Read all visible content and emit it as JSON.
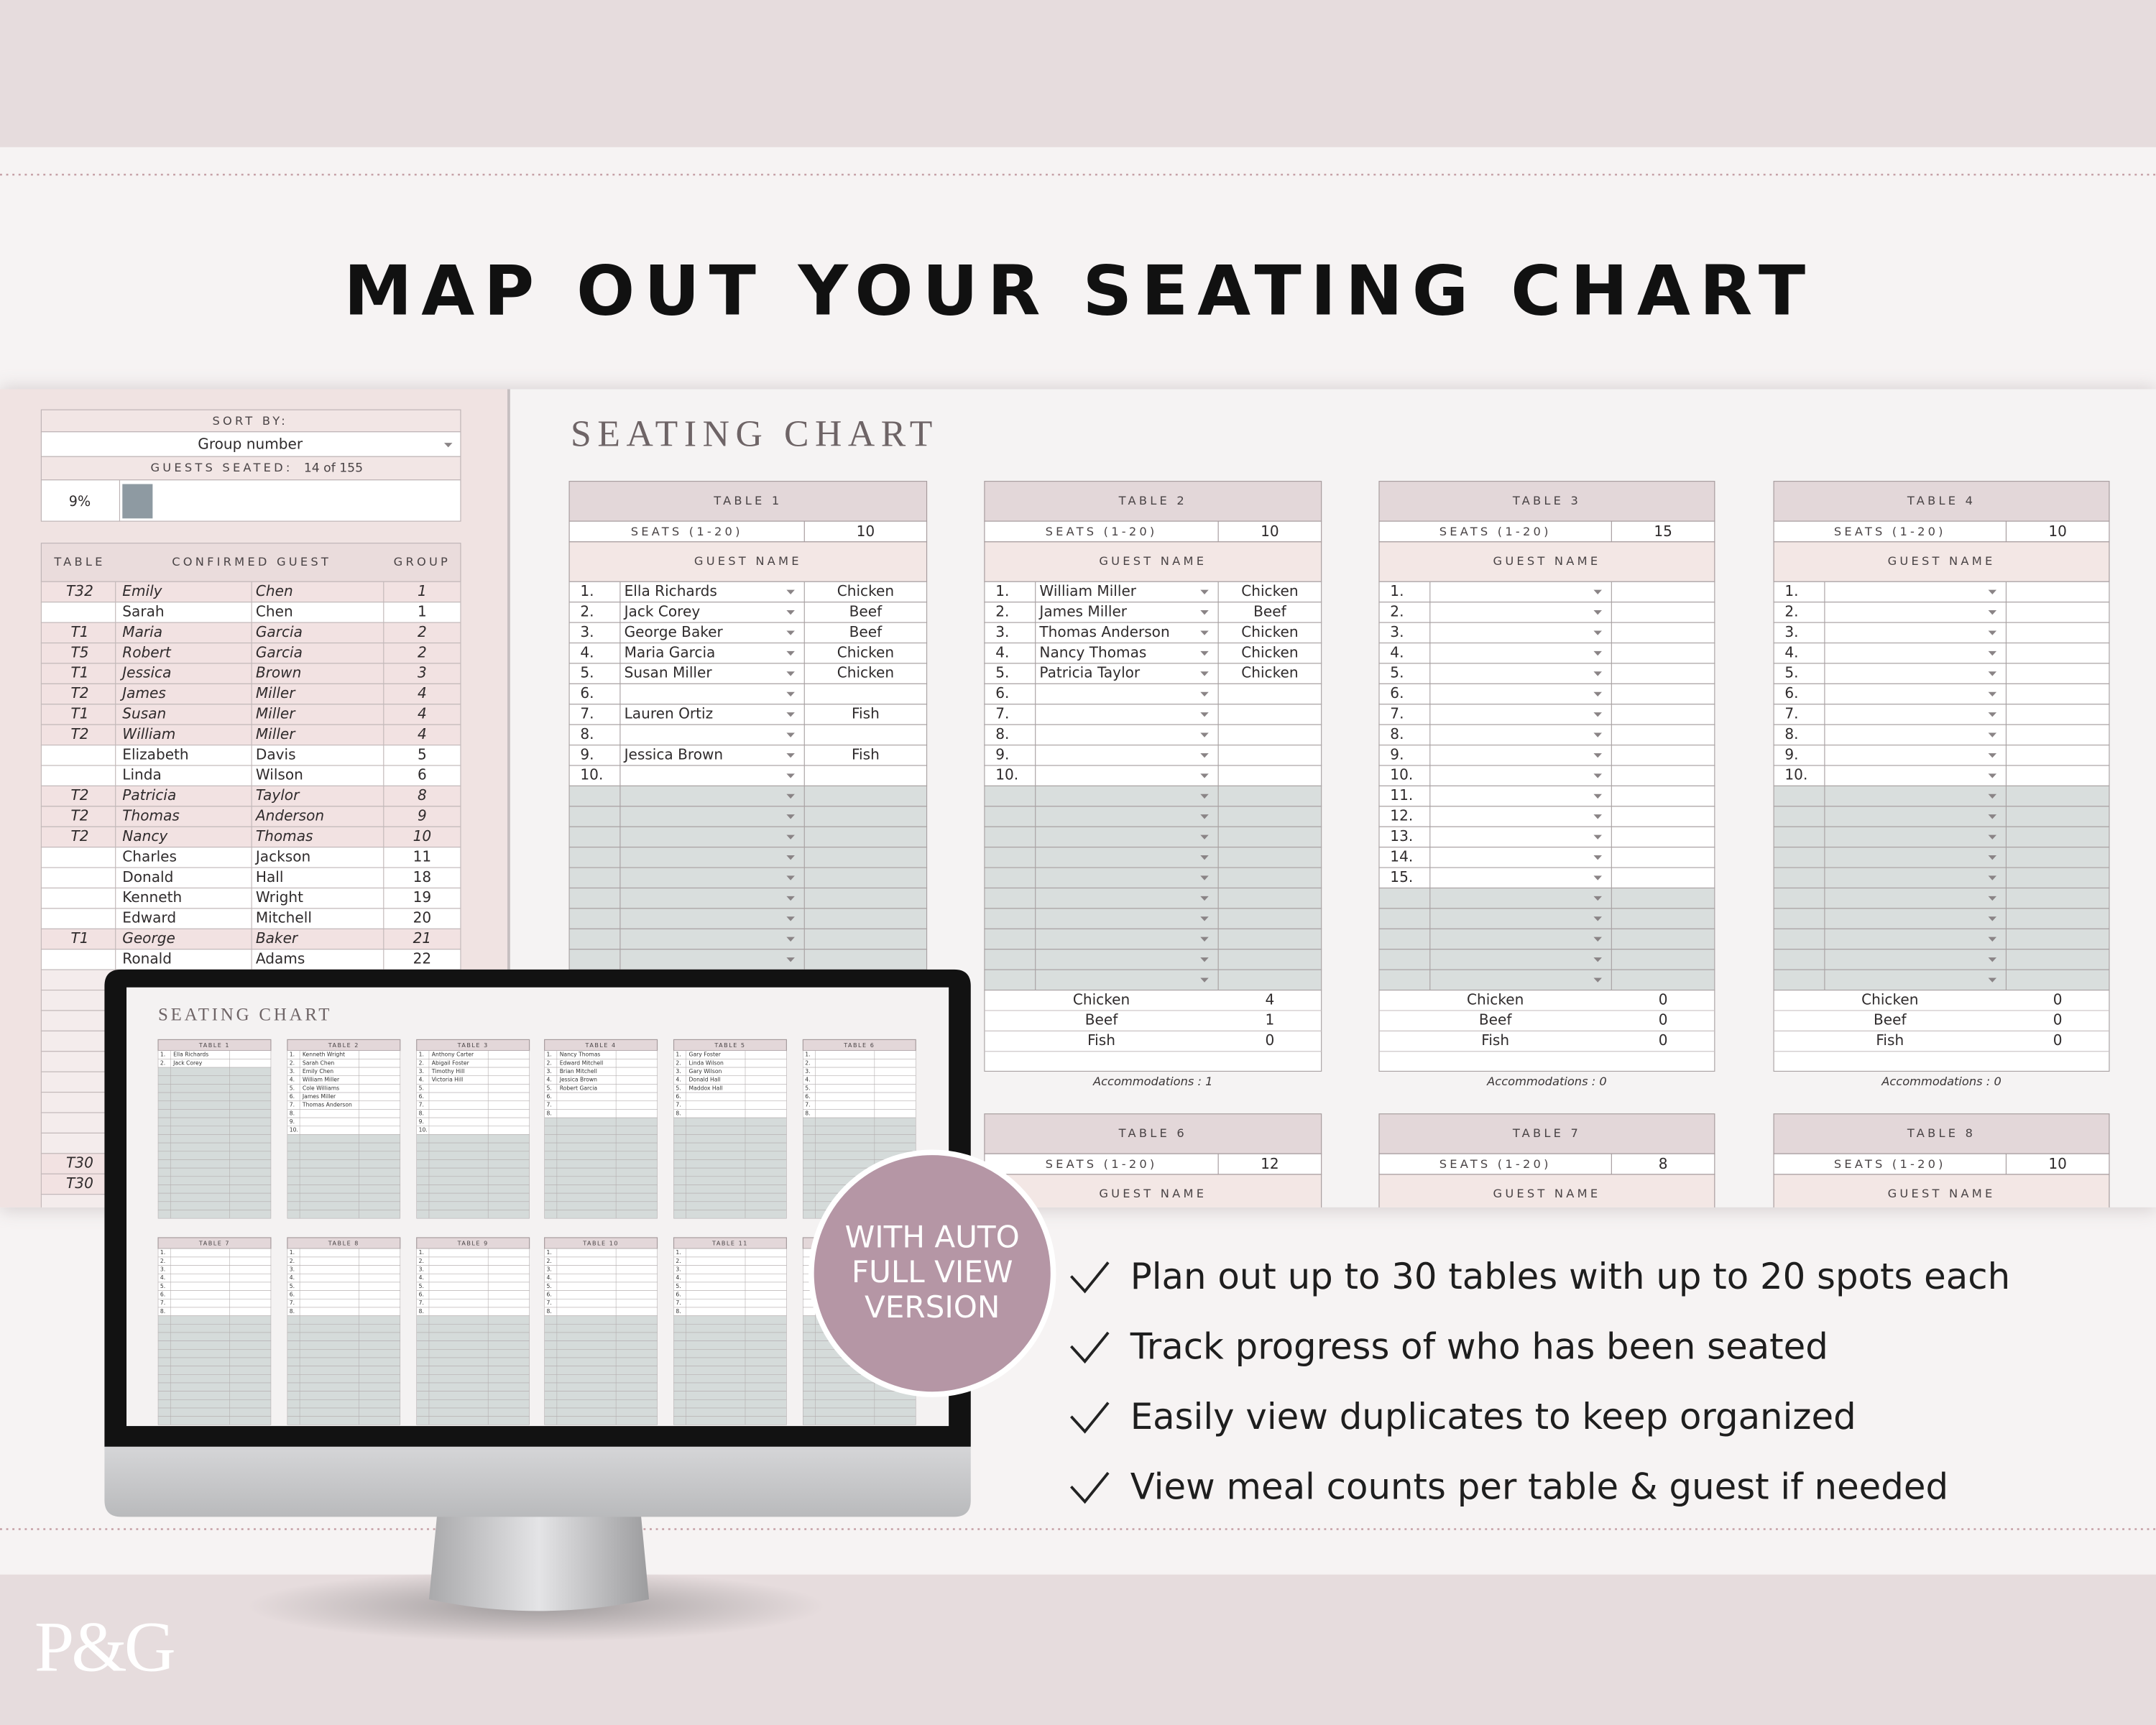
{
  "header": {
    "title": "MAP OUT YOUR SEATING CHART"
  },
  "sidebar": {
    "sort_label": "SORT BY:",
    "sort_value": "Group number",
    "seated_label": "GUESTS SEATED:",
    "seated_value": "14 of 155",
    "progress": "9%",
    "columns": [
      "TABLE",
      "CONFIRMED GUEST",
      "GROUP"
    ],
    "rows": [
      [
        "T32",
        "Emily",
        "Chen",
        1
      ],
      [
        null,
        "Sarah",
        "Chen",
        1
      ],
      [
        "T1",
        "Maria",
        "Garcia",
        2
      ],
      [
        "T5",
        "Robert",
        "Garcia",
        2
      ],
      [
        "T1",
        "Jessica",
        "Brown",
        3
      ],
      [
        "T2",
        "James",
        "Miller",
        4
      ],
      [
        "T1",
        "Susan",
        "Miller",
        4
      ],
      [
        "T2",
        "William",
        "Miller",
        4
      ],
      [
        null,
        "Elizabeth",
        "Davis",
        5
      ],
      [
        null,
        "Linda",
        "Wilson",
        6
      ],
      [
        "T2",
        "Patricia",
        "Taylor",
        8
      ],
      [
        "T2",
        "Thomas",
        "Anderson",
        9
      ],
      [
        "T2",
        "Nancy",
        "Thomas",
        10
      ],
      [
        null,
        "Charles",
        "Jackson",
        11
      ],
      [
        null,
        "Donald",
        "Hall",
        18
      ],
      [
        null,
        "Kenneth",
        "Wright",
        19
      ],
      [
        null,
        "Edward",
        "Mitchell",
        20
      ],
      [
        "T1",
        "George",
        "Baker",
        21
      ],
      [
        null,
        "Ronald",
        "Adams",
        22
      ],
      null,
      null,
      null,
      null,
      null,
      null,
      null,
      null,
      null,
      [
        "T30"
      ],
      [
        "T30"
      ],
      null
    ]
  },
  "sheet": {
    "title": "SEATING CHART",
    "tables": [
      {
        "name": "TABLE 1",
        "seats_label": "SEATS (1-20)",
        "seats": 10,
        "guest_header": "GUEST NAME",
        "rows": [
          [
            "1.",
            "Ella Richards",
            "Chicken"
          ],
          [
            "2.",
            "Jack Corey",
            "Beef"
          ],
          [
            "3.",
            "George Baker",
            "Beef"
          ],
          [
            "4.",
            "Maria Garcia",
            "Chicken"
          ],
          [
            "5.",
            "Susan Miller",
            "Chicken"
          ],
          [
            "6."
          ],
          [
            "7.",
            "Lauren Ortiz",
            "Fish"
          ],
          [
            "8."
          ],
          [
            "9.",
            "Jessica Brown",
            "Fish"
          ],
          [
            "10."
          ]
        ]
      },
      {
        "name": "TABLE 2",
        "seats_label": "SEATS (1-20)",
        "seats": 10,
        "guest_header": "GUEST NAME",
        "rows": [
          [
            "1.",
            "William Miller",
            "Chicken"
          ],
          [
            "2.",
            "James Miller",
            "Beef"
          ],
          [
            "3.",
            "Thomas Anderson",
            "Chicken"
          ],
          [
            "4.",
            "Nancy Thomas",
            "Chicken"
          ],
          [
            "5.",
            "Patricia Taylor",
            "Chicken"
          ],
          [
            "6."
          ],
          [
            "7."
          ],
          [
            "8."
          ],
          [
            "9."
          ],
          [
            "10."
          ]
        ],
        "summary": [
          [
            "Chicken",
            4
          ],
          [
            "Beef",
            1
          ],
          [
            "Fish",
            0
          ]
        ],
        "accommodations": "Accommodations : 1"
      },
      {
        "name": "TABLE 3",
        "seats_label": "SEATS (1-20)",
        "seats": 15,
        "guest_header": "GUEST NAME",
        "rows": [
          [
            "1."
          ],
          [
            "2."
          ],
          [
            "3."
          ],
          [
            "4."
          ],
          [
            "5."
          ],
          [
            "6."
          ],
          [
            "7."
          ],
          [
            "8."
          ],
          [
            "9."
          ],
          [
            "10."
          ],
          [
            "11."
          ],
          [
            "12."
          ],
          [
            "13."
          ],
          [
            "14."
          ],
          [
            "15."
          ]
        ],
        "summary": [
          [
            "Chicken",
            0
          ],
          [
            "Beef",
            0
          ],
          [
            "Fish",
            0
          ]
        ],
        "accommodations": "Accommodations : 0"
      },
      {
        "name": "TABLE 4",
        "seats_label": "SEATS (1-20)",
        "seats": 10,
        "guest_header": "GUEST NAME",
        "rows": [
          [
            "1."
          ],
          [
            "2."
          ],
          [
            "3."
          ],
          [
            "4."
          ],
          [
            "5."
          ],
          [
            "6."
          ],
          [
            "7."
          ],
          [
            "8."
          ],
          [
            "9."
          ],
          [
            "10."
          ]
        ],
        "summary": [
          [
            "Chicken",
            0
          ],
          [
            "Beef",
            0
          ],
          [
            "Fish",
            0
          ]
        ],
        "accommodations": "Accommodations : 0"
      },
      {
        "name": "TABLE 6",
        "seats_label": "SEATS (1-20)",
        "seats": 12,
        "guest_header": "GUEST NAME"
      },
      {
        "name": "TABLE 7",
        "seats_label": "SEATS (1-20)",
        "seats": 8,
        "guest_header": "GUEST NAME"
      },
      {
        "name": "TABLE 8",
        "seats_label": "SEATS (1-20)",
        "seats": 10,
        "guest_header": "GUEST NAME"
      }
    ]
  },
  "monitor": {
    "title": "SEATING CHART",
    "tables": [
      {
        "name": "TABLE 1",
        "rows": [
          [
            "1.",
            "Ella Richards"
          ],
          [
            "2.",
            "Jack Corey"
          ]
        ]
      },
      {
        "name": "TABLE 2",
        "rows": [
          [
            "1.",
            "Kenneth Wright"
          ],
          [
            "2.",
            "Sarah Chen"
          ],
          [
            "3.",
            "Emily Chen"
          ],
          [
            "4.",
            "William Miller"
          ],
          [
            "5.",
            "Cole Williams"
          ],
          [
            "6.",
            "James Miller"
          ],
          [
            "7.",
            "Thomas Anderson"
          ],
          [
            "8."
          ],
          [
            "9."
          ],
          [
            "10."
          ]
        ]
      },
      {
        "name": "TABLE 3",
        "rows": [
          [
            "1.",
            "Anthony Carter"
          ],
          [
            "2.",
            "Abigail Foster"
          ],
          [
            "3.",
            "Timothy Hill"
          ],
          [
            "4.",
            "Victoria Hill"
          ],
          [
            "5."
          ],
          [
            "6."
          ],
          [
            "7."
          ],
          [
            "8."
          ],
          [
            "9."
          ],
          [
            "10."
          ]
        ]
      },
      {
        "name": "TABLE 4",
        "rows": [
          [
            "1.",
            "Nancy Thomas"
          ],
          [
            "2.",
            "Edward Mitchell"
          ],
          [
            "3.",
            "Brian Mitchell"
          ],
          [
            "4.",
            "Jessica Brown"
          ],
          [
            "5.",
            "Robert Garcia"
          ],
          [
            "6."
          ],
          [
            "7."
          ],
          [
            "8."
          ]
        ]
      },
      {
        "name": "TABLE 5",
        "rows": [
          [
            "1.",
            "Gary Foster"
          ],
          [
            "2.",
            "Linda Wilson"
          ],
          [
            "3.",
            "Gary Wilson"
          ],
          [
            "4.",
            "Donald Hall"
          ],
          [
            "5.",
            "Maddox Hall"
          ],
          [
            "6."
          ],
          [
            "7."
          ],
          [
            "8."
          ]
        ]
      },
      {
        "name": "TABLE 6",
        "rows": [
          [
            "1."
          ],
          [
            "2."
          ],
          [
            "3."
          ],
          [
            "4."
          ],
          [
            "5."
          ],
          [
            "6."
          ],
          [
            "7."
          ],
          [
            "8."
          ]
        ]
      },
      {
        "name": "TABLE 7",
        "rows": [
          [
            "1."
          ],
          [
            "2."
          ],
          [
            "3."
          ],
          [
            "4."
          ],
          [
            "5."
          ],
          [
            "6."
          ],
          [
            "7."
          ],
          [
            "8."
          ]
        ]
      },
      {
        "name": "TABLE 8",
        "rows": [
          [
            "1."
          ],
          [
            "2."
          ],
          [
            "3."
          ],
          [
            "4."
          ],
          [
            "5."
          ],
          [
            "6."
          ],
          [
            "7."
          ],
          [
            "8."
          ]
        ]
      },
      {
        "name": "TABLE 9",
        "rows": [
          [
            "1."
          ],
          [
            "2."
          ],
          [
            "3."
          ],
          [
            "4."
          ],
          [
            "5."
          ],
          [
            "6."
          ],
          [
            "7."
          ],
          [
            "8."
          ]
        ]
      },
      {
        "name": "TABLE 10",
        "rows": [
          [
            "1."
          ],
          [
            "2."
          ],
          [
            "3."
          ],
          [
            "4."
          ],
          [
            "5."
          ],
          [
            "6."
          ],
          [
            "7."
          ],
          [
            "8."
          ]
        ]
      },
      {
        "name": "TABLE 11",
        "rows": [
          [
            "1."
          ],
          [
            "2."
          ],
          [
            "3."
          ],
          [
            "4."
          ],
          [
            "5."
          ],
          [
            "6."
          ],
          [
            "7."
          ],
          [
            "8."
          ]
        ]
      }
    ]
  },
  "badge": {
    "lines": [
      "WITH AUTO",
      "FULL VIEW",
      "VERSION"
    ]
  },
  "features": [
    "Plan out up to 30 tables with up to 20 spots each",
    "Track progress of who has been seated",
    "Easily view duplicates to keep organized",
    "View meal counts per table & guest if needed"
  ],
  "logo": "P&G"
}
